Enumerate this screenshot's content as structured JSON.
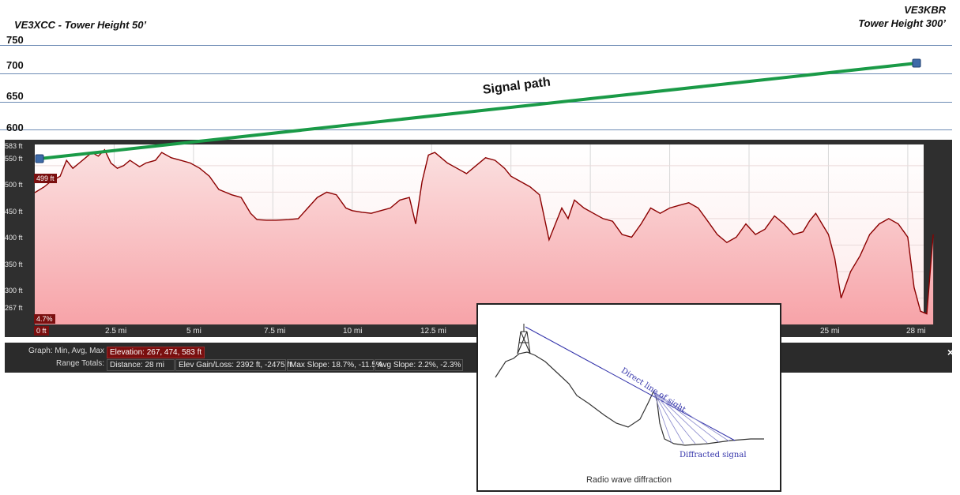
{
  "header": {
    "left_title": "VE3XCC - Tower Height 50’",
    "right_title_line1": "VE3KBR",
    "right_title_line2": "Tower Height 300’"
  },
  "top_axis": {
    "ticks": [
      "750",
      "700",
      "650",
      "600"
    ]
  },
  "annotation": {
    "signal_label": "Signal path"
  },
  "chart_data": {
    "type": "area",
    "xlabel": "",
    "ylabel": "",
    "x_ticks": [
      "0 ft",
      "2.5 mi",
      "5 mi",
      "7.5 mi",
      "10 mi",
      "12.5 mi",
      "25 mi",
      "28 mi"
    ],
    "y_ticks": [
      "583 ft",
      "550 ft",
      "500 ft",
      "450 ft",
      "400 ft",
      "350 ft",
      "300 ft",
      "267 ft"
    ],
    "ylim": [
      250,
      590
    ],
    "xlim": [
      0,
      28
    ],
    "grid": true,
    "color": "#8b0000",
    "fill_color": "#f9c9c9",
    "x": [
      0,
      0.3,
      0.5,
      0.8,
      1.0,
      1.2,
      1.4,
      1.6,
      1.8,
      2.0,
      2.2,
      2.4,
      2.6,
      2.8,
      3.0,
      3.3,
      3.5,
      3.8,
      4.0,
      4.3,
      4.6,
      4.9,
      5.2,
      5.5,
      5.8,
      6.0,
      6.2,
      6.5,
      6.8,
      7.0,
      7.3,
      7.6,
      8.0,
      8.3,
      8.6,
      8.9,
      9.2,
      9.5,
      9.8,
      10.0,
      10.3,
      10.6,
      10.9,
      11.2,
      11.5,
      11.8,
      12.0,
      12.2,
      12.4,
      12.6,
      12.8,
      13.0,
      13.3,
      13.6,
      13.9,
      14.2,
      14.5,
      14.8,
      15.0,
      15.3,
      15.6,
      15.9,
      16.2,
      16.4,
      16.6,
      16.8,
      17.0,
      17.3,
      17.6,
      17.9,
      18.2,
      18.5,
      18.8,
      19.1,
      19.4,
      19.7,
      20.0,
      20.3,
      20.6,
      20.9,
      21.2,
      21.5,
      21.8,
      22.1,
      22.4,
      22.7,
      23.0,
      23.3,
      23.6,
      23.9,
      24.2,
      24.4,
      24.6,
      24.8,
      25.0,
      25.2,
      25.4,
      25.7,
      26.0,
      26.3,
      26.6,
      26.9,
      27.2,
      27.5,
      27.7,
      27.9,
      28.1,
      28.3
    ],
    "elevation": [
      499,
      510,
      520,
      530,
      560,
      545,
      555,
      565,
      575,
      568,
      580,
      555,
      545,
      550,
      560,
      548,
      555,
      560,
      575,
      565,
      560,
      555,
      545,
      530,
      505,
      500,
      495,
      490,
      460,
      448,
      447,
      447,
      448,
      450,
      470,
      490,
      500,
      495,
      470,
      465,
      462,
      460,
      465,
      470,
      485,
      490,
      440,
      520,
      570,
      575,
      565,
      555,
      545,
      535,
      550,
      565,
      560,
      545,
      530,
      520,
      510,
      495,
      410,
      440,
      470,
      450,
      485,
      470,
      460,
      450,
      445,
      420,
      415,
      440,
      470,
      460,
      470,
      475,
      480,
      470,
      445,
      420,
      405,
      415,
      440,
      420,
      430,
      455,
      440,
      420,
      425,
      445,
      460,
      440,
      420,
      375,
      300,
      350,
      380,
      420,
      440,
      450,
      440,
      415,
      320,
      275,
      270,
      420
    ]
  },
  "range_labels": {
    "start_elev": "499 ft",
    "start_pct": "4.7%"
  },
  "stats": {
    "graph_label": "Graph: Min, Avg, Max",
    "elevation": "Elevation: 267, 474, 583 ft",
    "range_label": "Range Totals:",
    "distance": "Distance: 28 mi",
    "gain_loss": "Elev Gain/Loss: 2392 ft, -2475 ft",
    "max_slope": "Max Slope: 18.7%, -11.5%",
    "avg_slope": "Avg Slope: 2.2%, -2.3%"
  },
  "close_label": "×",
  "inset": {
    "los_label": "Direct line of sight",
    "diffracted_label": "Diffracted signal",
    "caption": "Radio wave diffraction"
  },
  "colors": {
    "signal_line": "#1a9a47",
    "marker": "#3d6aa8",
    "gridline": "#6c8bb4",
    "profile_line": "#8b0000"
  }
}
